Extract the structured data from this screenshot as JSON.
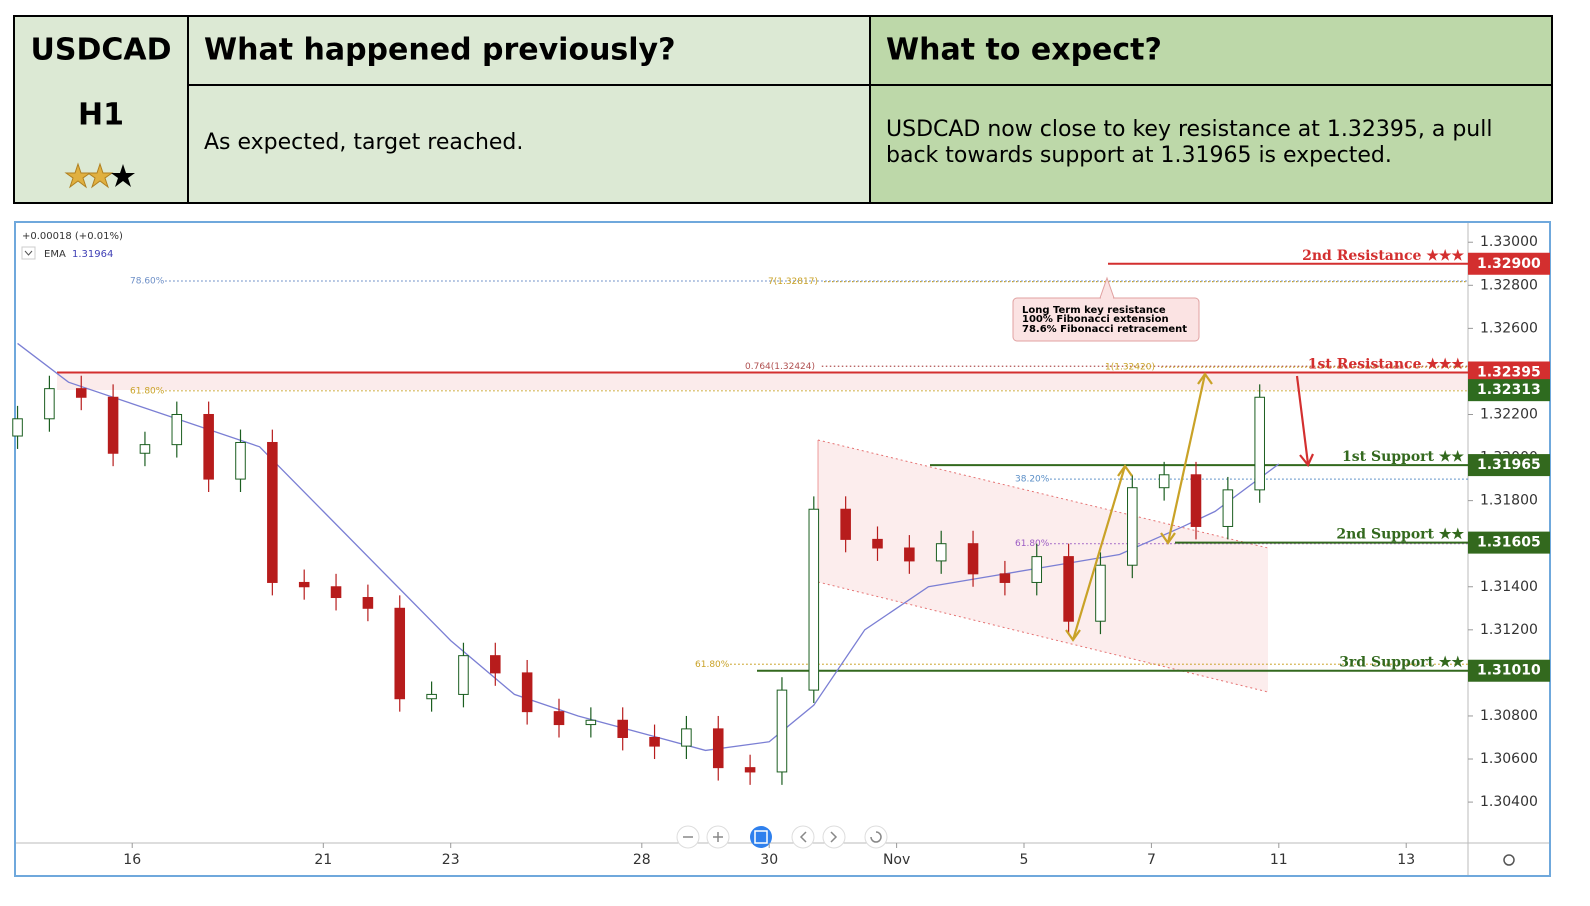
{
  "header": {
    "symbol": "USDCAD",
    "timeframe": "H1",
    "previous_title": "What happened previously?",
    "expect_title": "What to expect?",
    "previous_text": "As expected, target reached.",
    "expect_text": [
      "USDCAD now close to key resistance at 1.32395, a pull",
      "back towards support at 1.31965 is expected."
    ]
  },
  "chart_data": {
    "type": "candlestick",
    "change_label": "+0.00018 (+0.01%)",
    "ema_name": "EMA",
    "ema_value_label": "1.31964",
    "up_color": "#1b5e20",
    "down_color": "#b71c1c",
    "x": [
      -1.8,
      -1.3,
      -0.8,
      -0.3,
      0.2,
      0.7,
      1.2,
      1.7,
      2.2,
      2.7,
      3.2,
      3.7,
      4.2,
      4.7,
      5.2,
      5.7,
      6.2,
      6.7,
      7.2,
      7.7,
      8.2,
      8.7,
      9.2,
      9.7,
      10.2,
      10.7,
      11.2,
      11.7,
      12.2,
      12.7,
      13.2,
      13.7,
      14.2,
      14.7,
      15.2,
      15.7,
      16.2,
      16.7,
      17.2,
      17.7
    ],
    "open": [
      1.321,
      1.3218,
      1.3232,
      1.3228,
      1.3202,
      1.3206,
      1.322,
      1.319,
      1.3207,
      1.3142,
      1.314,
      1.3135,
      1.313,
      1.3088,
      1.309,
      1.3108,
      1.31,
      1.3082,
      1.3076,
      1.3078,
      1.307,
      1.3066,
      1.3074,
      1.3056,
      1.3054,
      1.3092,
      1.3176,
      1.3162,
      1.3158,
      1.3152,
      1.316,
      1.3146,
      1.3142,
      1.3154,
      1.3124,
      1.315,
      1.3186,
      1.3192,
      1.3168,
      1.3185
    ],
    "high": [
      1.3224,
      1.3238,
      1.3238,
      1.3234,
      1.3212,
      1.3226,
      1.3226,
      1.3213,
      1.3213,
      1.3148,
      1.3146,
      1.3141,
      1.3136,
      1.3096,
      1.3114,
      1.3114,
      1.3106,
      1.3088,
      1.3084,
      1.3084,
      1.3076,
      1.308,
      1.308,
      1.3062,
      1.3098,
      1.3182,
      1.3182,
      1.3168,
      1.3164,
      1.3166,
      1.3166,
      1.3152,
      1.316,
      1.316,
      1.3156,
      1.3192,
      1.3198,
      1.3198,
      1.3191,
      1.3234
    ],
    "low": [
      1.3204,
      1.3212,
      1.3222,
      1.3196,
      1.3196,
      1.32,
      1.3184,
      1.3184,
      1.3136,
      1.3134,
      1.3129,
      1.3124,
      1.3082,
      1.3082,
      1.3084,
      1.3094,
      1.3076,
      1.307,
      1.307,
      1.3064,
      1.306,
      1.306,
      1.305,
      1.3048,
      1.3048,
      1.3086,
      1.3156,
      1.3152,
      1.3146,
      1.3146,
      1.314,
      1.3136,
      1.3136,
      1.3118,
      1.3118,
      1.3144,
      1.318,
      1.3162,
      1.3162,
      1.3179
    ],
    "close": [
      1.3218,
      1.3232,
      1.3228,
      1.3202,
      1.3206,
      1.322,
      1.319,
      1.3207,
      1.3142,
      1.314,
      1.3135,
      1.313,
      1.3088,
      1.309,
      1.3108,
      1.31,
      1.3082,
      1.3076,
      1.3078,
      1.307,
      1.3066,
      1.3074,
      1.3056,
      1.3054,
      1.3092,
      1.3176,
      1.3162,
      1.3158,
      1.3152,
      1.316,
      1.3146,
      1.3142,
      1.3154,
      1.3124,
      1.315,
      1.3186,
      1.3192,
      1.3168,
      1.3185,
      1.3228
    ],
    "ema": {
      "color": "#7b7fd4",
      "x": [
        -1.8,
        -1.0,
        0,
        1.0,
        2.0,
        3.0,
        4.0,
        5.0,
        6.0,
        7.0,
        8.0,
        9.0,
        10.0,
        10.7,
        11.5,
        12.5,
        13.5,
        14.5,
        15.5,
        16.5,
        17.0,
        18.0
      ],
      "values": [
        1.3253,
        1.3235,
        1.3225,
        1.3215,
        1.3205,
        1.3175,
        1.3145,
        1.3115,
        1.309,
        1.308,
        1.3072,
        1.3064,
        1.3068,
        1.3085,
        1.312,
        1.314,
        1.3145,
        1.315,
        1.3155,
        1.3168,
        1.3175,
        1.3197
      ]
    },
    "xlim": [
      -1.84,
      20.97
    ],
    "xticks": [
      {
        "value": 0,
        "label": "16"
      },
      {
        "value": 3,
        "label": "21"
      },
      {
        "value": 5,
        "label": "23"
      },
      {
        "value": 8,
        "label": "28"
      },
      {
        "value": 10,
        "label": "30"
      },
      {
        "value": 12,
        "label": "Nov"
      },
      {
        "value": 14,
        "label": "5"
      },
      {
        "value": 16,
        "label": "7"
      },
      {
        "value": 18,
        "label": "11"
      },
      {
        "value": 20,
        "label": "13"
      }
    ],
    "ylim": [
      1.3021,
      1.3308
    ],
    "yticks": [
      {
        "value": 1.33,
        "label": "1.33000"
      },
      {
        "value": 1.328,
        "label": "1.32800"
      },
      {
        "value": 1.326,
        "label": "1.32600"
      },
      {
        "value": 1.324,
        "label": "1.32400"
      },
      {
        "value": 1.322,
        "label": "1.32200"
      },
      {
        "value": 1.32,
        "label": "1.32000"
      },
      {
        "value": 1.318,
        "label": "1.31800"
      },
      {
        "value": 1.316,
        "label": "1.31600"
      },
      {
        "value": 1.314,
        "label": "1.31400"
      },
      {
        "value": 1.312,
        "label": "1.31200"
      },
      {
        "value": 1.31,
        "label": "1.31000"
      },
      {
        "value": 1.308,
        "label": "1.30800"
      },
      {
        "value": 1.306,
        "label": "1.30600"
      },
      {
        "value": 1.304,
        "label": "1.30400"
      }
    ],
    "levels": [
      {
        "name": "2nd Resistance ★★★",
        "value": 1.329,
        "label": "1.32900",
        "color": "#d32f2f"
      },
      {
        "name": "1st Resistance ★★★",
        "value": 1.32395,
        "label": "1.32395",
        "color": "#d32f2f"
      },
      {
        "name": "1st Support ★★",
        "value": 1.31965,
        "label": "1.31965",
        "color": "#33691e"
      },
      {
        "name": "2nd Support ★★",
        "value": 1.31605,
        "label": "1.31605",
        "color": "#33691e"
      },
      {
        "name": "3rd Support ★★",
        "value": 1.3101,
        "label": "1.31010",
        "color": "#33691e"
      }
    ],
    "last_price": {
      "value": 1.32313,
      "label": "1.32313",
      "color": "#2e6b1f"
    },
    "fib_levels": [
      {
        "label": "78.60%",
        "value": 1.3282,
        "color": "#6d8fc7"
      },
      {
        "label": "7(1.32817)",
        "value": 1.32817,
        "color": "#c9a227"
      },
      {
        "label": "0.764(1.32424)",
        "value": 1.32424,
        "color": "#b05050"
      },
      {
        "label": "1(1.32420)",
        "value": 1.3242,
        "color": "#c9a227"
      },
      {
        "label": "61.80%",
        "value": 1.3231,
        "color": "#c9a227"
      },
      {
        "label": "38.20%",
        "value": 1.319,
        "color": "#5b8fc7"
      },
      {
        "label": "61.80%",
        "value": 1.316,
        "color": "#9c5cc4"
      },
      {
        "label": "61.80%",
        "value": 1.3104,
        "color": "#c9a227"
      }
    ],
    "annotation": [
      "Long Term key resistance",
      "100% Fibonacci extension",
      "78.6% Fibonacci retracement"
    ]
  }
}
